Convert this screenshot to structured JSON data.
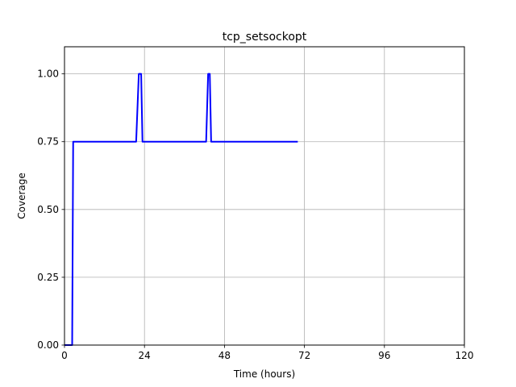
{
  "chart_data": {
    "type": "line",
    "title": "tcp_setsockopt",
    "xlabel": "Time (hours)",
    "ylabel": "Coverage",
    "xlim": [
      0,
      120
    ],
    "ylim": [
      0,
      1.1
    ],
    "xticks": [
      0,
      24,
      48,
      72,
      96,
      120
    ],
    "yticks": [
      0.0,
      0.25,
      0.5,
      0.75,
      1.0
    ],
    "xtick_labels": [
      "0",
      "24",
      "48",
      "72",
      "96",
      "120"
    ],
    "ytick_labels": [
      "0.00",
      "0.25",
      "0.50",
      "0.75",
      "1.00"
    ],
    "grid": true,
    "series": [
      {
        "color": "#0000ff",
        "x": [
          0,
          2.3,
          2.6,
          21.5,
          22.3,
          23.0,
          23.4,
          42.5,
          43.1,
          43.6,
          44.0,
          70.0
        ],
        "y": [
          0,
          0,
          0.75,
          0.75,
          1.0,
          1.0,
          0.75,
          0.75,
          1.0,
          1.0,
          0.75,
          0.75
        ]
      }
    ]
  }
}
